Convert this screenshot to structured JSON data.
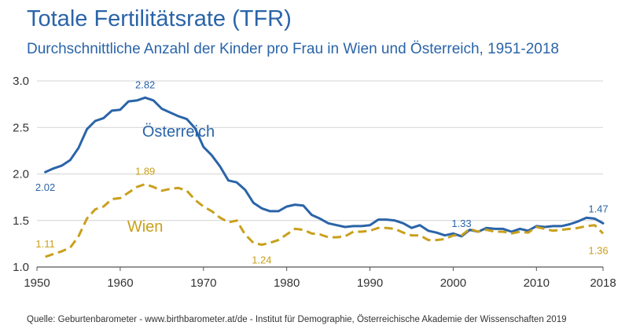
{
  "header": {
    "title": "Totale Fertilitätsrate (TFR)",
    "subtitle": "Durchschnittliche Anzahl der Kinder pro Frau in Wien und Österreich, 1951-2018"
  },
  "footer": {
    "source": "Quelle: Geburtenbarometer - www.birthbarometer.at/de - Institut für Demographie, Österreichische Akademie der Wissenschaften 2019"
  },
  "colors": {
    "oesterreich": "#2a64a8",
    "wien": "#c9a01c",
    "grid": "#d4d4d4",
    "axis": "#555555"
  },
  "chart_data": {
    "type": "line",
    "title": "Totale Fertilitätsrate (TFR)",
    "subtitle": "Durchschnittliche Anzahl der Kinder pro Frau in Wien und Österreich, 1951-2018",
    "xlabel": "",
    "ylabel": "",
    "xlim": [
      1950,
      2018
    ],
    "ylim": [
      1.0,
      3.0
    ],
    "x_ticks": [
      1950,
      1960,
      1970,
      1980,
      1990,
      2000,
      2010,
      2018
    ],
    "y_ticks": [
      {
        "value": 1.0,
        "label": "1.0"
      },
      {
        "value": 1.5,
        "label": "1.5"
      },
      {
        "value": 2.0,
        "label": "2.0"
      },
      {
        "value": 2.5,
        "label": "2.5"
      },
      {
        "value": 3.0,
        "label": "3.0"
      }
    ],
    "grid": true,
    "x": [
      1951,
      1952,
      1953,
      1954,
      1955,
      1956,
      1957,
      1958,
      1959,
      1960,
      1961,
      1962,
      1963,
      1964,
      1965,
      1966,
      1967,
      1968,
      1969,
      1970,
      1971,
      1972,
      1973,
      1974,
      1975,
      1976,
      1977,
      1978,
      1979,
      1980,
      1981,
      1982,
      1983,
      1984,
      1985,
      1986,
      1987,
      1988,
      1989,
      1990,
      1991,
      1992,
      1993,
      1994,
      1995,
      1996,
      1997,
      1998,
      1999,
      2000,
      2001,
      2002,
      2003,
      2004,
      2005,
      2006,
      2007,
      2008,
      2009,
      2010,
      2011,
      2012,
      2013,
      2014,
      2015,
      2016,
      2017,
      2018
    ],
    "series": [
      {
        "name": "Österreich",
        "style": "solid",
        "values": [
          2.02,
          2.06,
          2.09,
          2.15,
          2.28,
          2.48,
          2.57,
          2.6,
          2.68,
          2.69,
          2.78,
          2.79,
          2.82,
          2.79,
          2.7,
          2.66,
          2.62,
          2.59,
          2.49,
          2.29,
          2.2,
          2.08,
          1.93,
          1.91,
          1.83,
          1.69,
          1.63,
          1.6,
          1.6,
          1.65,
          1.67,
          1.66,
          1.56,
          1.52,
          1.47,
          1.45,
          1.43,
          1.44,
          1.44,
          1.45,
          1.51,
          1.51,
          1.5,
          1.47,
          1.42,
          1.45,
          1.39,
          1.37,
          1.34,
          1.36,
          1.33,
          1.4,
          1.38,
          1.42,
          1.41,
          1.41,
          1.38,
          1.41,
          1.39,
          1.44,
          1.43,
          1.44,
          1.44,
          1.46,
          1.49,
          1.53,
          1.52,
          1.47
        ]
      },
      {
        "name": "Wien",
        "style": "dashed",
        "values": [
          1.11,
          1.14,
          1.17,
          1.21,
          1.33,
          1.52,
          1.62,
          1.65,
          1.73,
          1.74,
          1.8,
          1.86,
          1.89,
          1.86,
          1.82,
          1.84,
          1.85,
          1.82,
          1.72,
          1.65,
          1.6,
          1.53,
          1.48,
          1.5,
          1.35,
          1.26,
          1.24,
          1.26,
          1.29,
          1.35,
          1.41,
          1.4,
          1.36,
          1.35,
          1.32,
          1.32,
          1.33,
          1.38,
          1.38,
          1.39,
          1.42,
          1.42,
          1.41,
          1.37,
          1.34,
          1.34,
          1.29,
          1.29,
          1.3,
          1.34,
          1.34,
          1.41,
          1.38,
          1.4,
          1.38,
          1.38,
          1.36,
          1.38,
          1.37,
          1.43,
          1.41,
          1.39,
          1.4,
          1.41,
          1.42,
          1.44,
          1.45,
          1.36
        ]
      }
    ],
    "data_labels": [
      {
        "series": "Österreich",
        "year": 1951,
        "text": "2.02",
        "pos": "below"
      },
      {
        "series": "Österreich",
        "year": 1963,
        "text": "2.82",
        "pos": "above"
      },
      {
        "series": "Österreich",
        "year": 2001,
        "text": "1.33",
        "pos": "above"
      },
      {
        "series": "Österreich",
        "year": 2018,
        "text": "1.47",
        "pos": "above-left"
      },
      {
        "series": "Wien",
        "year": 1951,
        "text": "1.11",
        "pos": "above"
      },
      {
        "series": "Wien",
        "year": 1963,
        "text": "1.89",
        "pos": "above"
      },
      {
        "series": "Wien",
        "year": 1977,
        "text": "1.24",
        "pos": "below"
      },
      {
        "series": "Wien",
        "year": 2018,
        "text": "1.36",
        "pos": "below-left"
      }
    ],
    "series_labels": [
      {
        "series": "Österreich",
        "text": "Österreich",
        "anchor_year": 1967,
        "anchor_value": 2.4
      },
      {
        "series": "Wien",
        "text": "Wien",
        "anchor_year": 1963,
        "anchor_value": 1.38
      }
    ]
  }
}
